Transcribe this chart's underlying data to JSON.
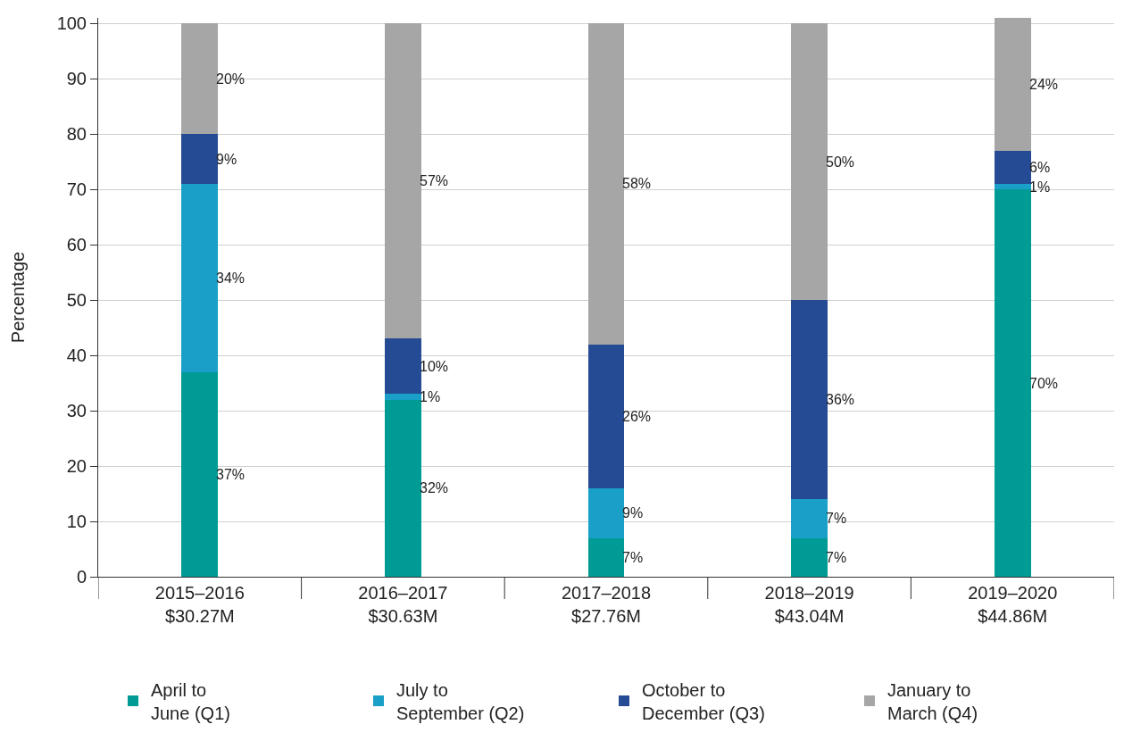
{
  "chart_data": {
    "type": "bar",
    "stacked": true,
    "ylabel": "Percentage",
    "categories": [
      "2015–2016\n$30.27M",
      "2016–2017\n$30.63M",
      "2017–2018\n$27.76M",
      "2018–2019\n$43.04M",
      "2019–2020\n$44.86M"
    ],
    "series": [
      {
        "name": "April to\nJune (Q1)",
        "color": "#009b95",
        "values": [
          37,
          32,
          7,
          7,
          70
        ],
        "value_labels": [
          "37%",
          "32%",
          "7%",
          "7%",
          "70%"
        ]
      },
      {
        "name": "July to\nSeptember (Q2)",
        "color": "#1aa0c8",
        "values": [
          34,
          1,
          9,
          7,
          1
        ],
        "value_labels": [
          "34%",
          "1%",
          "9%",
          "7%",
          "1%"
        ]
      },
      {
        "name": "October to\nDecember (Q3)",
        "color": "#254b94",
        "values": [
          9,
          10,
          26,
          36,
          6
        ],
        "value_labels": [
          "9%",
          "10%",
          "26%",
          "36%",
          "6%"
        ]
      },
      {
        "name": "January to\nMarch (Q4)",
        "color": "#a6a6a6",
        "values": [
          20,
          57,
          58,
          50,
          24
        ],
        "value_labels": [
          "20%",
          "57%",
          "58%",
          "50%",
          "24%"
        ]
      }
    ],
    "ylim": [
      0,
      101
    ],
    "yticks": [
      0,
      10,
      20,
      30,
      40,
      50,
      60,
      70,
      80,
      90,
      100
    ],
    "grid": "y",
    "legend": "bottom"
  }
}
